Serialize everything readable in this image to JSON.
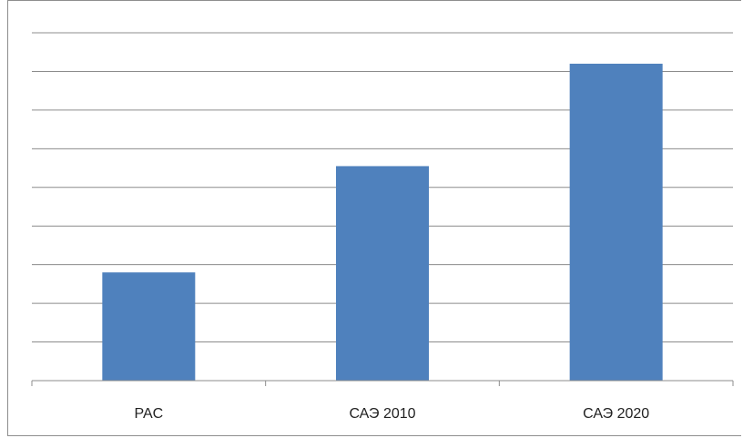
{
  "chart_data": {
    "type": "bar",
    "categories": [
      "PAC",
      "САЭ 2010",
      "САЭ 2020"
    ],
    "values": [
      2.8,
      5.55,
      8.2
    ],
    "ylim": [
      0,
      9
    ],
    "grid": true,
    "bar_color": "#4f81bd",
    "gridline_color": "#8c8c8c",
    "axis_color": "#8c8c8c"
  }
}
